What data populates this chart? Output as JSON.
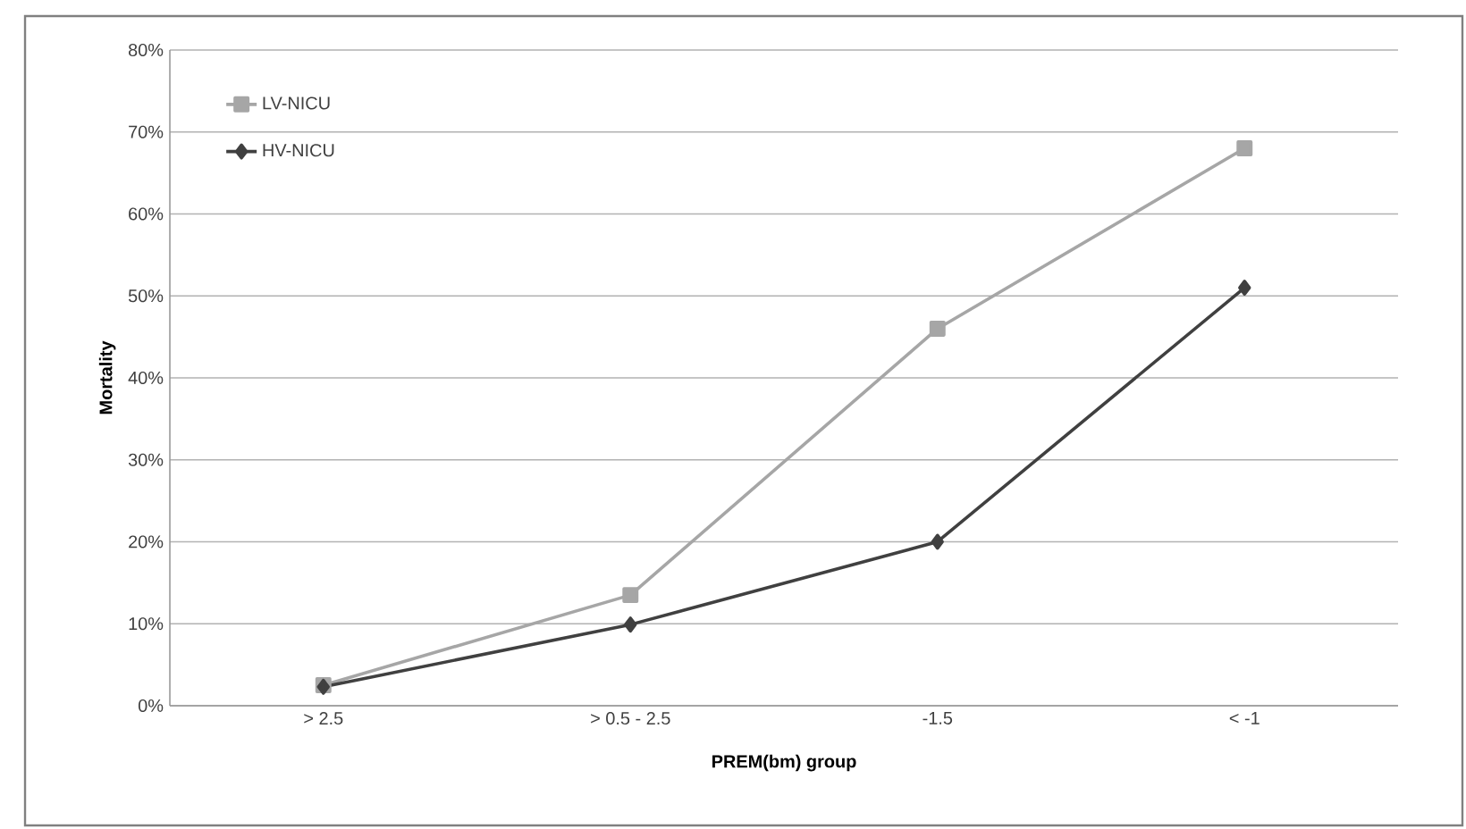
{
  "chart_data": {
    "type": "line",
    "xlabel": "PREM(bm) group",
    "ylabel": "Mortality",
    "categories": [
      "> 2.5",
      "> 0.5  -  2.5",
      "-1.5",
      "< -1"
    ],
    "series": [
      {
        "name": "LV-NICU",
        "color": "#a6a6a6",
        "marker": "square",
        "values": [
          2.5,
          13.5,
          46,
          68
        ]
      },
      {
        "name": "HV-NICU",
        "color": "#404040",
        "marker": "diamond",
        "values": [
          2.3,
          9.9,
          20,
          51
        ]
      }
    ],
    "ylim": [
      0,
      80
    ],
    "yticks": [
      {
        "value": 0,
        "label": "0%"
      },
      {
        "value": 10,
        "label": "10%"
      },
      {
        "value": 20,
        "label": "20%"
      },
      {
        "value": 30,
        "label": "30%"
      },
      {
        "value": 40,
        "label": "40%"
      },
      {
        "value": 50,
        "label": "50%"
      },
      {
        "value": 60,
        "label": "60%"
      },
      {
        "value": 70,
        "label": "70%"
      },
      {
        "value": 80,
        "label": "80%"
      }
    ],
    "grid": "y",
    "legend": "top left",
    "line_style": "solid"
  }
}
